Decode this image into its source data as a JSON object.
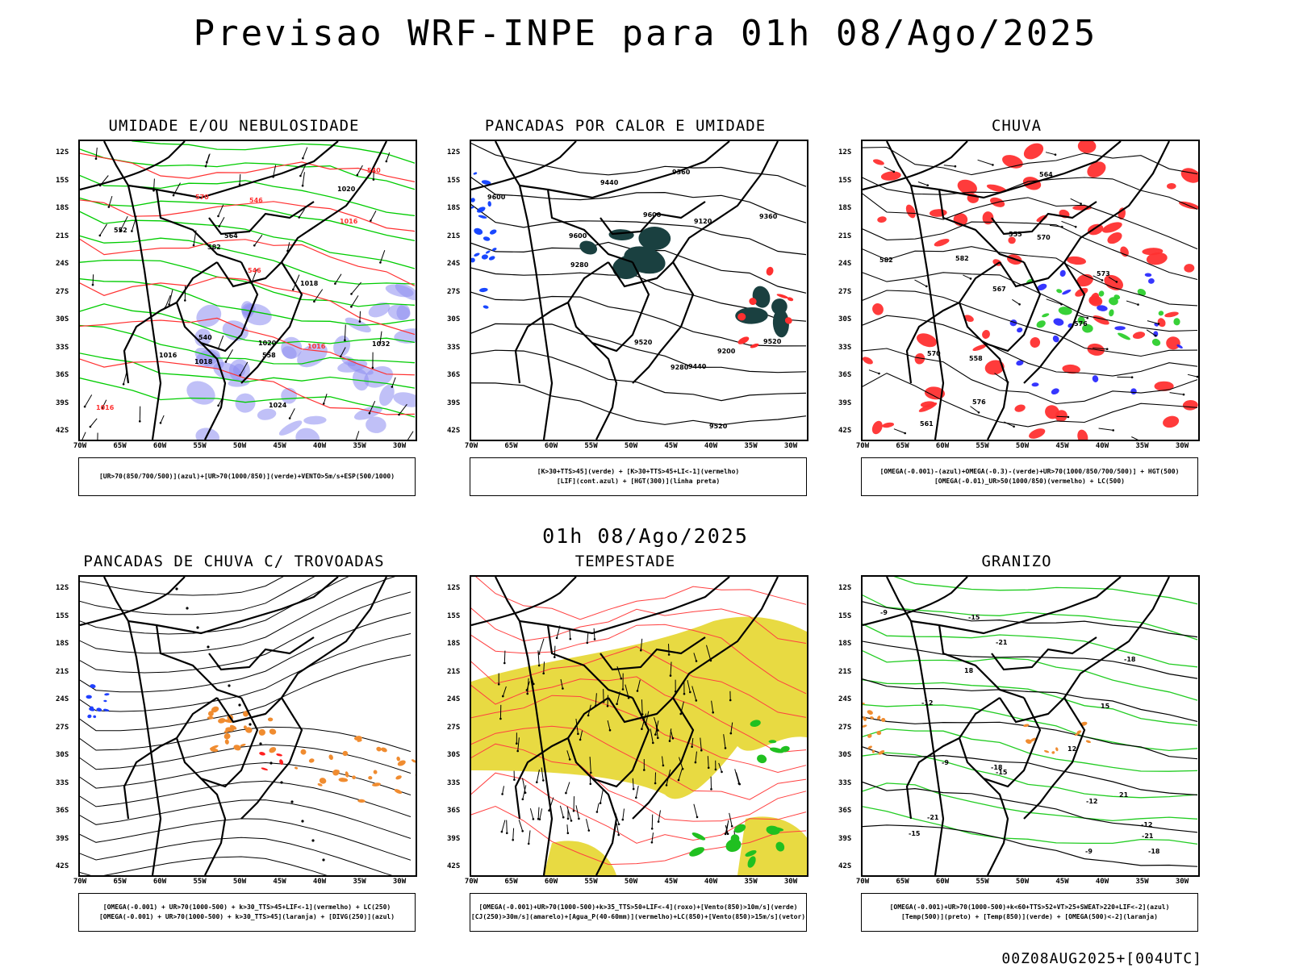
{
  "title": "Previsao WRF-INPE  para 01h 08/Ago/2025",
  "middle_title": "01h 08/Ago/2025",
  "footer": "00Z08AUG2025+[004UTC]",
  "axes": {
    "lat_labels": [
      "12S",
      "15S",
      "18S",
      "21S",
      "24S",
      "27S",
      "30S",
      "33S",
      "36S",
      "39S",
      "42S"
    ],
    "lon_labels": [
      "70W",
      "65W",
      "60W",
      "55W",
      "50W",
      "45W",
      "40W",
      "35W",
      "30W"
    ]
  },
  "panels": [
    {
      "title": "UMIDADE E/OU NEBULOSIDADE",
      "legend": [
        "[UR>70(850/700/500)](azul)+[UR>70(1000/850)](verde)+VENTO>5m/s+ESP(500/1000)"
      ],
      "contour_labels": [
        "1016",
        "1016",
        "1018",
        "1020",
        "1016",
        "1016",
        "1018",
        "1020",
        "1032",
        "1024",
        "582",
        "570",
        "564",
        "558",
        "552",
        "546",
        "540",
        "540",
        "546"
      ],
      "colors": {
        "fill": "#8c8cf0",
        "line": "#00cc00",
        "contour": "#ff3030"
      }
    },
    {
      "title": "PANCADAS POR CALOR E UMIDADE",
      "legend": [
        "[K>30+TTS>45](verde) + [K>30+TTS>45+LI<-1](vermelho)",
        "[LIF](cont.azul) + [HGT(300)](linha preta)"
      ],
      "contour_labels": [
        "9600",
        "9600",
        "9600",
        "9520",
        "9520",
        "9520",
        "9440",
        "9440",
        "9360",
        "9360",
        "9280",
        "9280",
        "9200",
        "9120"
      ],
      "colors": {
        "fill": "#1a4040",
        "line": "#0033ff",
        "contour": "#ff3030"
      }
    },
    {
      "title": "CHUVA",
      "legend": [
        "[OMEGA(-0.001)-(azul)+OMEGA(-0.3)-(verde)+UR>70(1000/850/700/500)] + HGT(500)",
        "[OMEGA(-0.01)_UR>50(1000/850)(vermelho) + LC(500)"
      ],
      "contour_labels": [
        "582",
        "582",
        "576",
        "576",
        "573",
        "570",
        "570",
        "567",
        "564",
        "561",
        "558",
        "555"
      ],
      "colors": {
        "fill": "#ff3030",
        "line": "#2020ff",
        "extra": "#22cc22"
      }
    },
    {
      "title": "PANCADAS DE CHUVA C/ TROVOADAS",
      "legend": [
        "[OMEGA(-0.001) + UR>70(1000-500) + k>30_TTS>45+LIF<-1](vermelho) + LC(250)",
        "[OMEGA(-0.001) + UR>70(1000-500) + k>30_TTS>45](laranja) + [DIVG(250)](azul)"
      ],
      "contour_labels": [],
      "colors": {
        "fill": "#f08c30",
        "line": "#2040ff",
        "extra": "#ff2020"
      }
    },
    {
      "title": "TEMPESTADE",
      "legend": [
        "[OMEGA(-0.001)+UR>70(1000-500)+k>35_TTS>50+LIF<-4](roxo)+[Vento(850)>10m/s](verde)",
        "[CJ(250)>30m/s](amarelo)+[Agua_P(40-60mm)](vermelho)+LC(850)+[Vento(850)>15m/s](vetor)"
      ],
      "contour_labels": [],
      "colors": {
        "fill": "#e6d62e",
        "line": "#ff4040",
        "extra": "#20c020"
      }
    },
    {
      "title": "GRANIZO",
      "legend": [
        "[OMEGA(-0.001)+UR>70(1000-500)+k<60+TTS>52+VT>25+SWEAT>220+LIF<-2](azul)",
        "[Temp(500)](preto) + [Temp(850)](verde) + [OMEGA(500)<-2](laranja)"
      ],
      "contour_labels": [
        "-9",
        "-9",
        "-9",
        "-12",
        "-12",
        "-12",
        "-15",
        "-15",
        "-15",
        "-18",
        "-18",
        "-18",
        "-21",
        "-21",
        "-21",
        "12",
        "15",
        "18",
        "21"
      ],
      "colors": {
        "fill": "#f08c30",
        "line": "#22cc22",
        "extra": "#000000"
      }
    }
  ]
}
